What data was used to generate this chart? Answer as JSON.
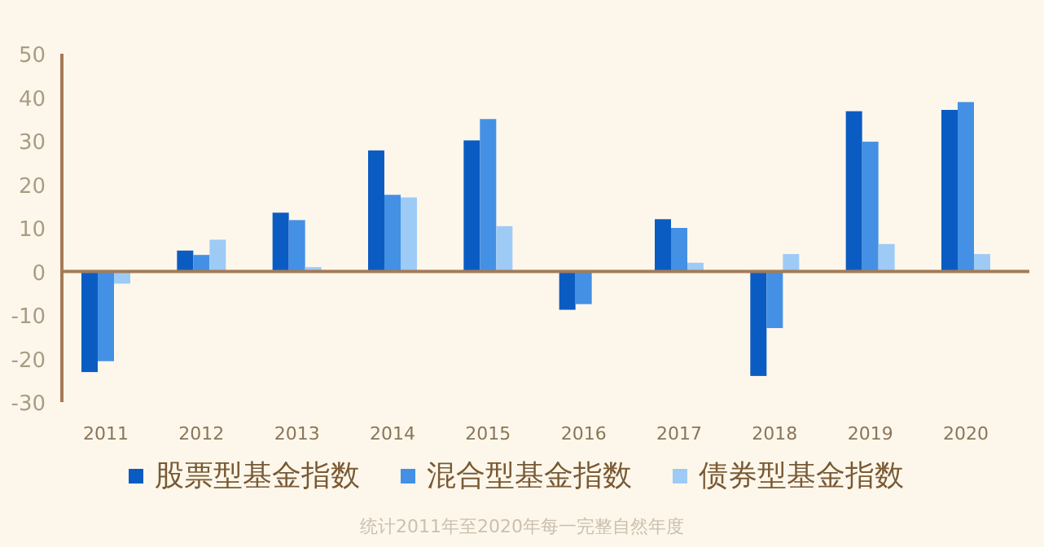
{
  "chart_data": {
    "type": "bar",
    "categories": [
      "2011",
      "2012",
      "2013",
      "2014",
      "2015",
      "2016",
      "2017",
      "2018",
      "2019",
      "2020"
    ],
    "series": [
      {
        "name": "股票型基金指数",
        "color": "#0b5cc2",
        "values": [
          -23.1,
          4.8,
          13.5,
          27.8,
          30.1,
          -8.8,
          12,
          -24,
          36.8,
          37.1
        ]
      },
      {
        "name": "混合型基金指数",
        "color": "#4490e4",
        "values": [
          -20.6,
          3.8,
          11.8,
          17.6,
          35,
          -7.5,
          10,
          -13,
          29.8,
          38.9
        ]
      },
      {
        "name": "债券型基金指数",
        "color": "#9ecbf6",
        "values": [
          -2.8,
          7.3,
          1,
          17,
          10.4,
          null,
          2,
          4,
          6.3,
          4
        ]
      }
    ],
    "ref_lines": [
      {
        "axis": "y",
        "value": 0,
        "color": "#a57a58"
      }
    ],
    "ylim": [
      -30,
      50
    ],
    "yticks": [
      -30,
      -20,
      -10,
      0,
      10,
      20,
      30,
      40,
      50
    ],
    "grid": false,
    "legend": "bottom",
    "annotations": [
      "统计2011年至2020年每一完整自然年度"
    ]
  }
}
